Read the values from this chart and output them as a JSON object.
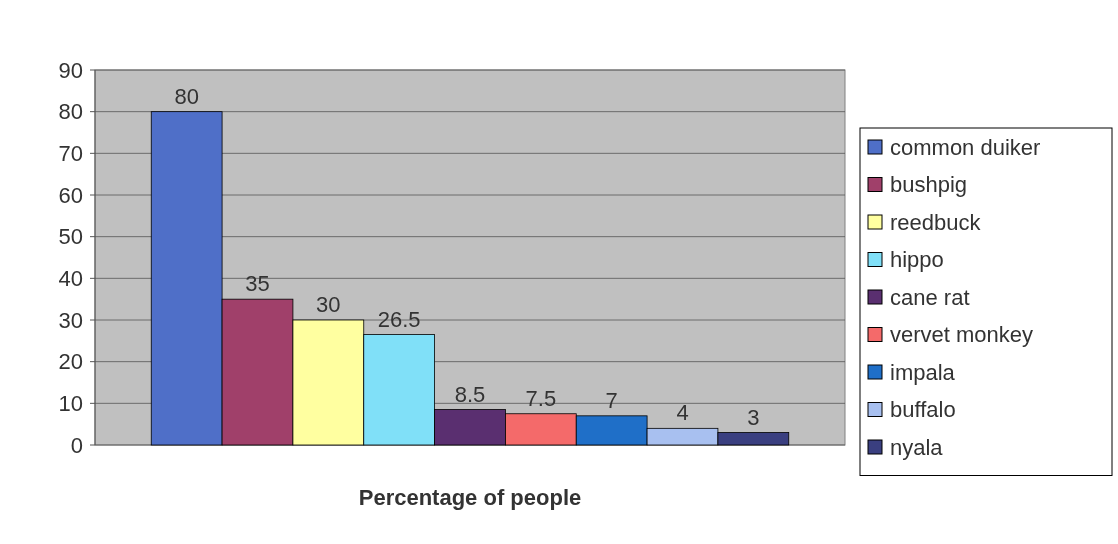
{
  "chart_data": {
    "type": "bar",
    "xlabel": "Percentage of people",
    "categories": [
      null
    ],
    "series": [
      {
        "name": "common duiker",
        "color": "#4f6fc8",
        "values": [
          80
        ]
      },
      {
        "name": "bushpig",
        "color": "#a0406a",
        "values": [
          35
        ]
      },
      {
        "name": "reedbuck",
        "color": "#ffffa0",
        "values": [
          30
        ]
      },
      {
        "name": "hippo",
        "color": "#80e0f8",
        "values": [
          26.5
        ]
      },
      {
        "name": "cane rat",
        "color": "#5a2f70",
        "values": [
          8.5
        ]
      },
      {
        "name": "vervet monkey",
        "color": "#f46a6a",
        "values": [
          7.5
        ]
      },
      {
        "name": "impala",
        "color": "#1f6fc8",
        "values": [
          7
        ]
      },
      {
        "name": "buffalo",
        "color": "#a8c0f0",
        "values": [
          4
        ]
      },
      {
        "name": "nyala",
        "color": "#3a3f80",
        "values": [
          3
        ]
      }
    ],
    "ylim": [
      0,
      90
    ],
    "yticks": [
      0,
      10,
      20,
      30,
      40,
      50,
      60,
      70,
      80,
      90
    ],
    "grid": "y",
    "legend": "right",
    "data_labels": true
  }
}
